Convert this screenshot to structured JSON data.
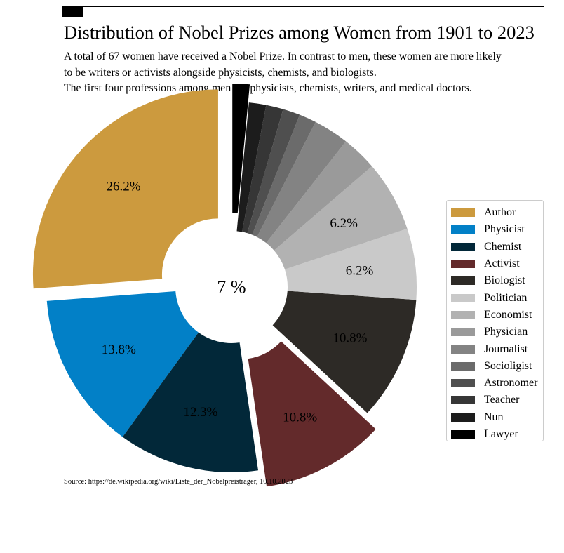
{
  "title": "Distribution of Nobel Prizes among Women from 1901 to 2023",
  "subtitle_lines": [
    "A total of 67 women have received a Nobel Prize. In contrast to men, these women are more likely",
    "to be writers or activists alongside physicists, chemists, and biologists.",
    "The first four professions among men are physicists, chemists, writers, and medical doctors."
  ],
  "source": "Source: https://de.wikipedia.org/wiki/Liste_der_Nobelpreisträger, 10.10.2023",
  "chart_data": {
    "type": "pie",
    "style": "donut",
    "center_label": "7 %",
    "categories": [
      "Author",
      "Physicist",
      "Chemist",
      "Activist",
      "Biologist",
      "Politician",
      "Economist",
      "Physician",
      "Journalist",
      "Socioligist",
      "Astronomer",
      "Teacher",
      "Nun",
      "Lawyer"
    ],
    "values": [
      26.2,
      13.8,
      12.3,
      10.8,
      10.8,
      6.2,
      6.2,
      3.1,
      3.1,
      1.5,
      1.5,
      1.5,
      1.5,
      1.5
    ],
    "data_labels": [
      "26.2%",
      "13.8%",
      "12.3%",
      "10.8%",
      "10.8%",
      "6.2%",
      "6.2%",
      "",
      "",
      "",
      "",
      "",
      "",
      ""
    ],
    "colors": [
      "#cc9a3e",
      "#0280c7",
      "#022839",
      "#632a2b",
      "#2d2a26",
      "#c9c9c9",
      "#b2b2b2",
      "#9a9a9a",
      "#838383",
      "#6b6b6b",
      "#4f4f4f",
      "#363636",
      "#1c1c1c",
      "#000000"
    ],
    "exploded": [
      "Author",
      "Activist",
      "Lawyer"
    ],
    "legend_position": "right"
  }
}
